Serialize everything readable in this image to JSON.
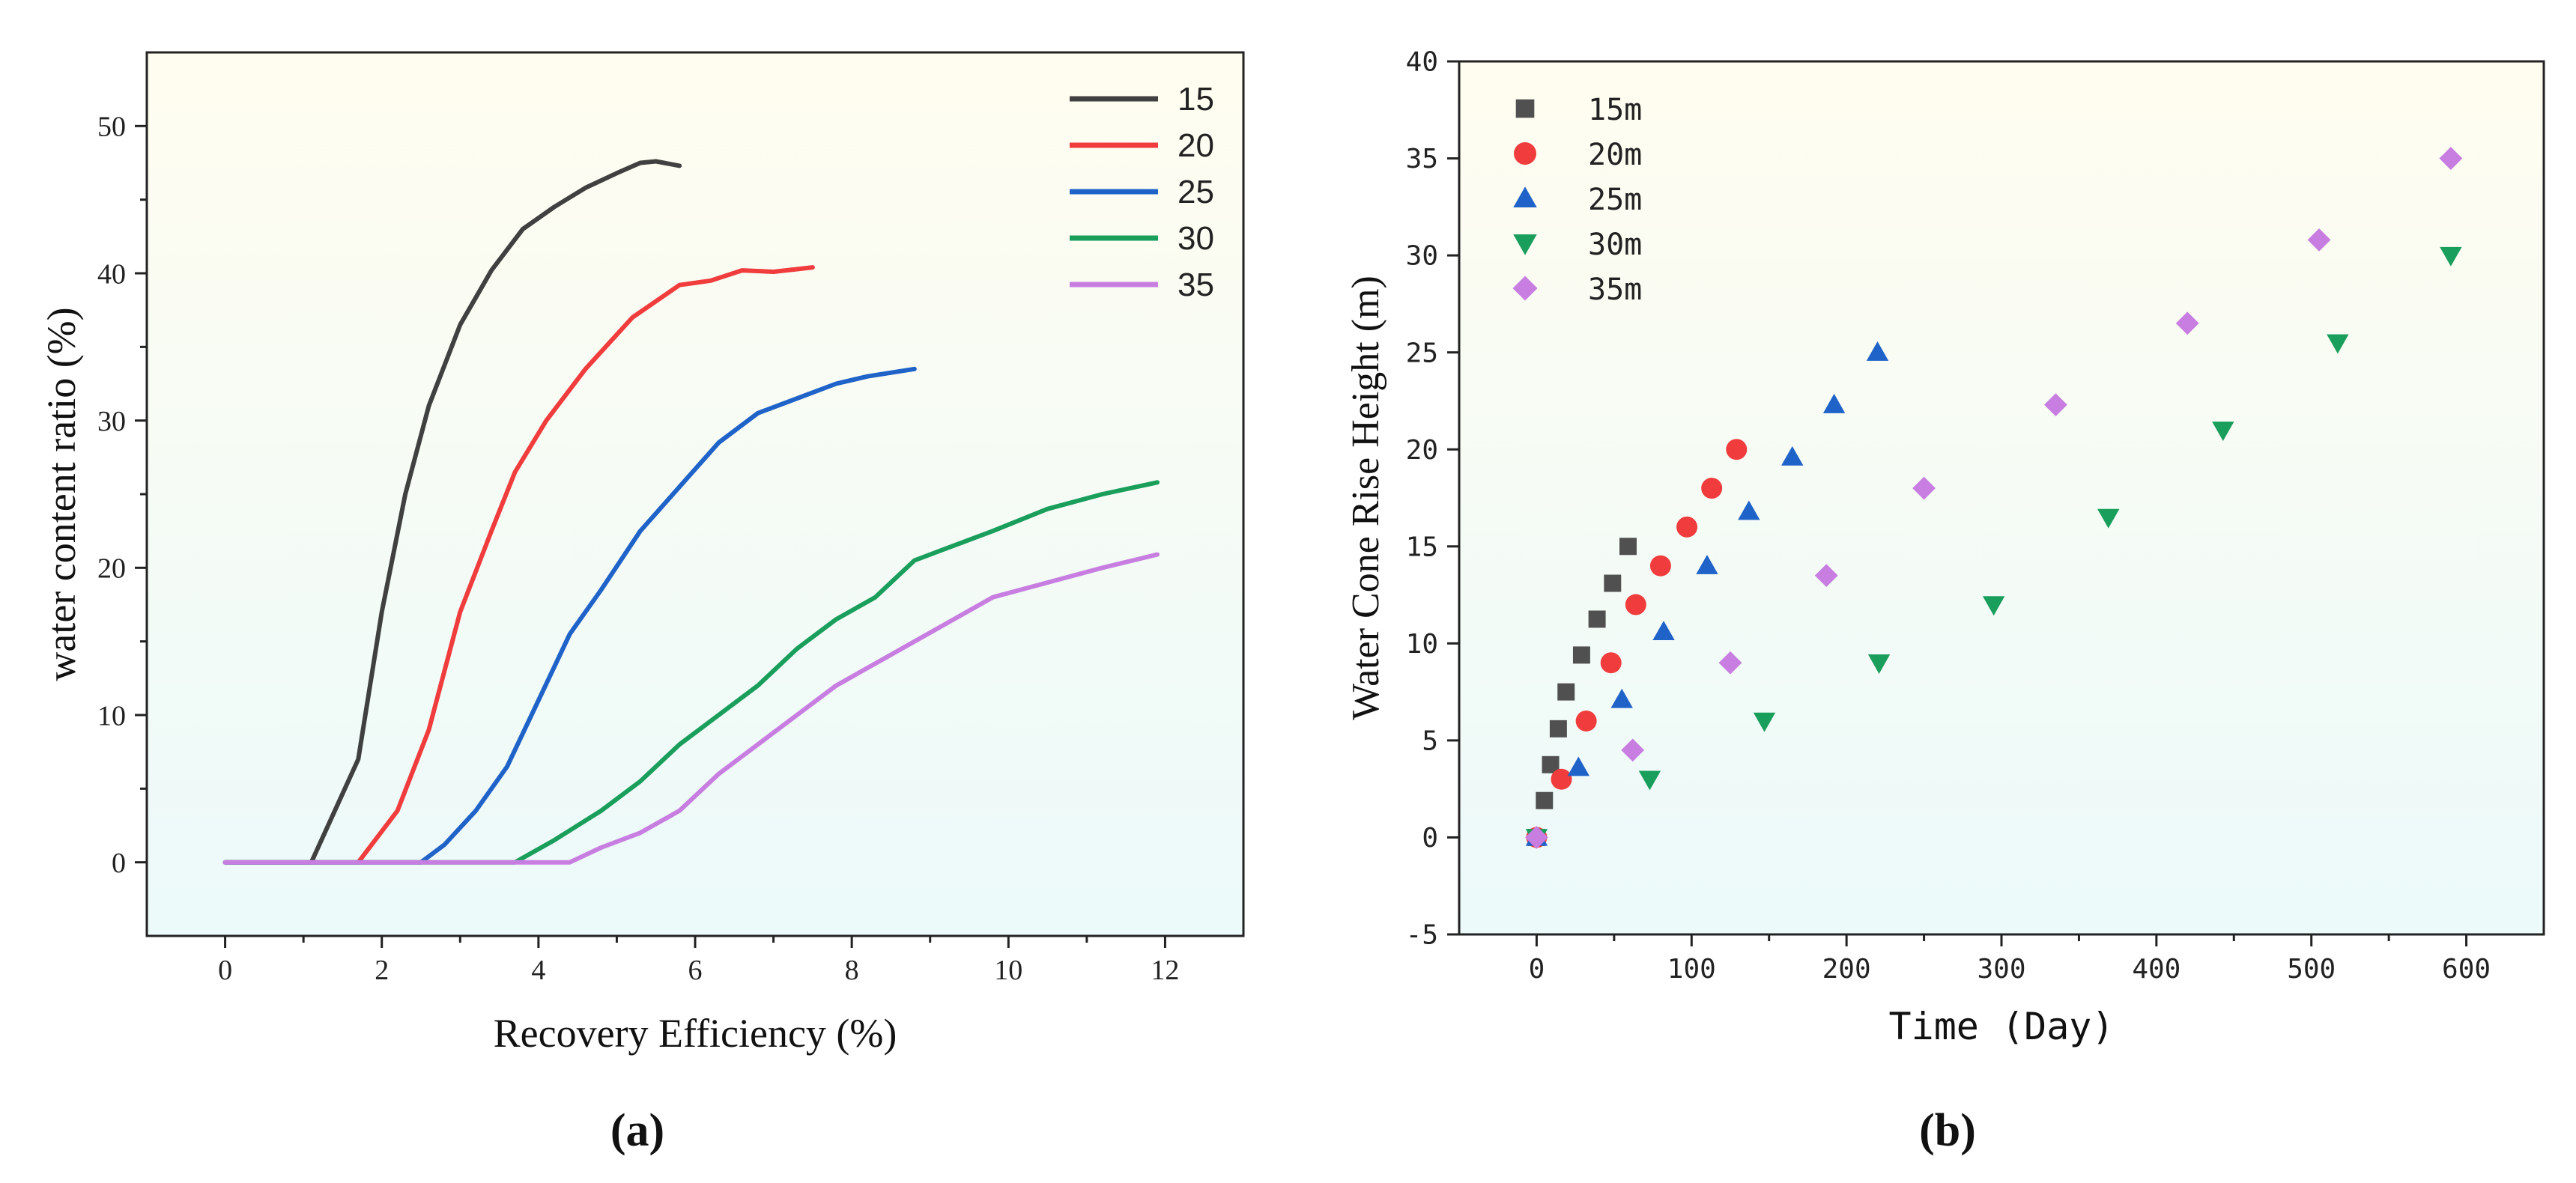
{
  "chart_data": [
    {
      "type": "line",
      "panel_label": "(a)",
      "xlabel": "Recovery Efficiency (%)",
      "ylabel": "water content ratio (%)",
      "xlim": [
        -1,
        13
      ],
      "ylim": [
        -5,
        55
      ],
      "xticks": [
        0,
        2,
        4,
        6,
        8,
        10,
        12
      ],
      "yticks": [
        0,
        10,
        20,
        30,
        40,
        50
      ],
      "legend_position": "top-right",
      "background_gradient": [
        "#fffdf0",
        "#ecfafa"
      ],
      "series": [
        {
          "name": "15",
          "color": "#404040",
          "points": [
            [
              0,
              0
            ],
            [
              1.1,
              0
            ],
            [
              1.4,
              3.5
            ],
            [
              1.7,
              7
            ],
            [
              2.0,
              17
            ],
            [
              2.3,
              25
            ],
            [
              2.6,
              31
            ],
            [
              3.0,
              36.5
            ],
            [
              3.4,
              40.2
            ],
            [
              3.8,
              43
            ],
            [
              4.2,
              44.5
            ],
            [
              4.6,
              45.8
            ],
            [
              5.0,
              46.8
            ],
            [
              5.3,
              47.5
            ],
            [
              5.5,
              47.6
            ],
            [
              5.8,
              47.3
            ]
          ]
        },
        {
          "name": "20",
          "color": "#f03c3c",
          "points": [
            [
              0,
              0
            ],
            [
              1.7,
              0
            ],
            [
              2.2,
              3.5
            ],
            [
              2.6,
              9
            ],
            [
              3.0,
              17
            ],
            [
              3.4,
              22.5
            ],
            [
              3.7,
              26.5
            ],
            [
              4.1,
              30
            ],
            [
              4.6,
              33.5
            ],
            [
              5.2,
              37
            ],
            [
              5.8,
              39.2
            ],
            [
              6.2,
              39.5
            ],
            [
              6.6,
              40.2
            ],
            [
              7.0,
              40.1
            ],
            [
              7.5,
              40.4
            ]
          ]
        },
        {
          "name": "25",
          "color": "#1f63c9",
          "points": [
            [
              0,
              0
            ],
            [
              2.5,
              0
            ],
            [
              2.8,
              1.2
            ],
            [
              3.2,
              3.5
            ],
            [
              3.6,
              6.5
            ],
            [
              4.0,
              11
            ],
            [
              4.4,
              15.5
            ],
            [
              4.8,
              18.5
            ],
            [
              5.3,
              22.5
            ],
            [
              5.8,
              25.5
            ],
            [
              6.3,
              28.5
            ],
            [
              6.8,
              30.5
            ],
            [
              7.3,
              31.5
            ],
            [
              7.8,
              32.5
            ],
            [
              8.2,
              33
            ],
            [
              8.8,
              33.5
            ]
          ]
        },
        {
          "name": "30",
          "color": "#1a9e5c",
          "points": [
            [
              0,
              0
            ],
            [
              3.7,
              0
            ],
            [
              4.2,
              1.5
            ],
            [
              4.8,
              3.5
            ],
            [
              5.3,
              5.5
            ],
            [
              5.8,
              8
            ],
            [
              6.3,
              10
            ],
            [
              6.8,
              12
            ],
            [
              7.3,
              14.5
            ],
            [
              7.8,
              16.5
            ],
            [
              8.3,
              18
            ],
            [
              8.8,
              20.5
            ],
            [
              9.3,
              21.5
            ],
            [
              9.8,
              22.5
            ],
            [
              10.5,
              24
            ],
            [
              11.2,
              25
            ],
            [
              11.9,
              25.8
            ]
          ]
        },
        {
          "name": "35",
          "color": "#c77ee0",
          "points": [
            [
              0,
              0
            ],
            [
              4.4,
              0
            ],
            [
              4.8,
              1
            ],
            [
              5.3,
              2
            ],
            [
              5.8,
              3.5
            ],
            [
              6.3,
              6
            ],
            [
              6.8,
              8
            ],
            [
              7.3,
              10
            ],
            [
              7.8,
              12
            ],
            [
              8.3,
              13.5
            ],
            [
              8.8,
              15
            ],
            [
              9.3,
              16.5
            ],
            [
              9.8,
              18
            ],
            [
              10.5,
              19
            ],
            [
              11.2,
              20
            ],
            [
              11.9,
              20.9
            ]
          ]
        }
      ]
    },
    {
      "type": "scatter",
      "panel_label": "(b)",
      "xlabel": "Time (Day)",
      "ylabel": "Water Cone Rise Height (m)",
      "xlim": [
        -50,
        650
      ],
      "ylim": [
        -5,
        40
      ],
      "xticks": [
        0,
        100,
        200,
        300,
        400,
        500,
        600
      ],
      "yticks": [
        -5,
        0,
        5,
        10,
        15,
        20,
        25,
        30,
        35,
        40
      ],
      "legend_position": "top-left",
      "background_gradient": [
        "#fffdf0",
        "#ecfafa"
      ],
      "series": [
        {
          "name": "15m",
          "color": "#505050",
          "marker": "square",
          "points": [
            [
              0,
              0
            ],
            [
              5,
              1.9
            ],
            [
              9,
              3.75
            ],
            [
              14,
              5.6
            ],
            [
              19,
              7.5
            ],
            [
              29,
              9.4
            ],
            [
              39,
              11.25
            ],
            [
              49,
              13.1
            ],
            [
              59,
              15
            ]
          ]
        },
        {
          "name": "20m",
          "color": "#f03c3c",
          "marker": "circle",
          "points": [
            [
              0,
              0
            ],
            [
              16,
              3
            ],
            [
              32,
              6
            ],
            [
              48,
              9
            ],
            [
              64,
              12
            ],
            [
              80,
              14
            ],
            [
              97,
              16
            ],
            [
              113,
              18
            ],
            [
              129,
              20
            ]
          ]
        },
        {
          "name": "25m",
          "color": "#1f63c9",
          "marker": "triangle-up",
          "points": [
            [
              0,
              0
            ],
            [
              27,
              3.6
            ],
            [
              55,
              7.1
            ],
            [
              82,
              10.6
            ],
            [
              110,
              14
            ],
            [
              137,
              16.8
            ],
            [
              165,
              19.6
            ],
            [
              192,
              22.3
            ],
            [
              220,
              25
            ]
          ]
        },
        {
          "name": "30m",
          "color": "#1a9e5c",
          "marker": "triangle-down",
          "points": [
            [
              0,
              0
            ],
            [
              73,
              3
            ],
            [
              147,
              6
            ],
            [
              221,
              9
            ],
            [
              295,
              12
            ],
            [
              369,
              16.5
            ],
            [
              443,
              21
            ],
            [
              517,
              25.5
            ],
            [
              590,
              30
            ]
          ]
        },
        {
          "name": "35m",
          "color": "#c77ee0",
          "marker": "diamond",
          "points": [
            [
              0,
              0
            ],
            [
              62,
              4.5
            ],
            [
              125,
              9
            ],
            [
              187,
              13.5
            ],
            [
              250,
              18
            ],
            [
              335,
              22.3
            ],
            [
              420,
              26.5
            ],
            [
              505,
              30.8
            ],
            [
              590,
              35
            ]
          ]
        }
      ]
    }
  ]
}
